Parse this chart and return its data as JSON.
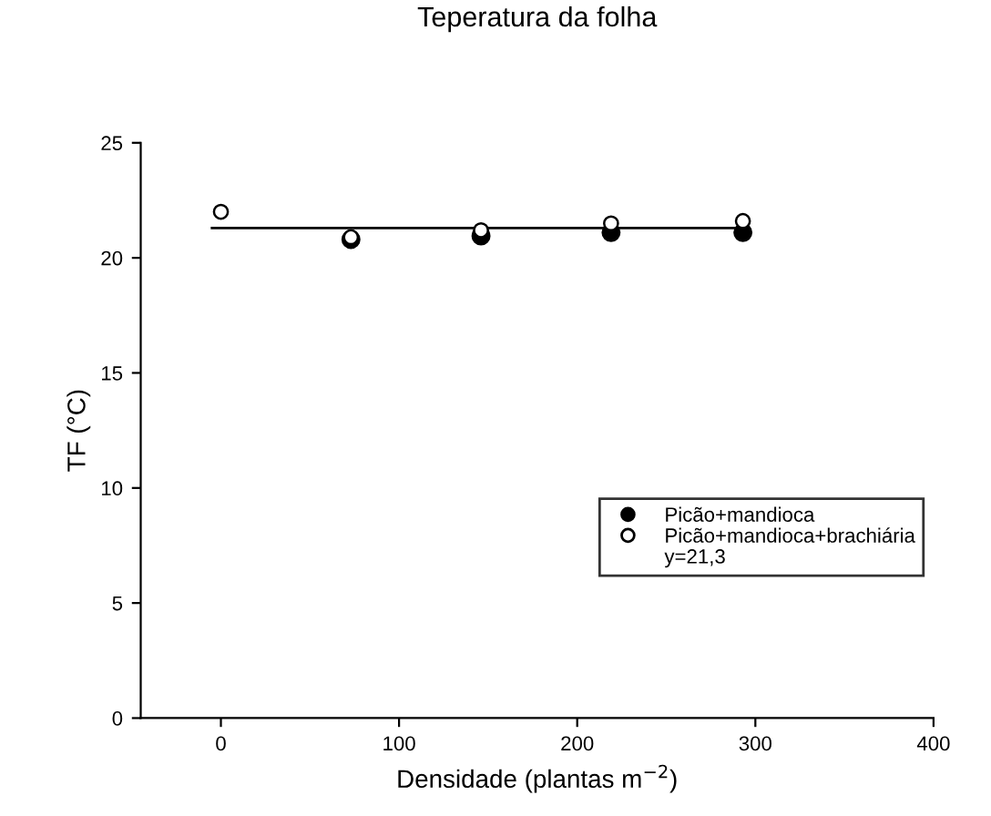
{
  "chart_data": {
    "type": "scatter",
    "title": "Teperatura da folha",
    "xlabel": "Densidade (plantas m$^{−2}$)",
    "ylabel": "TF (°C)",
    "x": [
      0,
      73,
      146,
      219,
      293
    ],
    "series": [
      {
        "name": "Picão+mandioca",
        "color": "#000000",
        "marker": "circle",
        "values": [
          null,
          20.8,
          20.95,
          21.1,
          21.1
        ]
      },
      {
        "name": "Picão+mandioca+brachiária",
        "color": "#ffffff",
        "marker": "circle",
        "values": [
          22.0,
          20.9,
          21.2,
          21.5,
          21.6
        ]
      },
      {
        "type": "line",
        "color": "#000000",
        "marker": "none",
        "x": [
          -5,
          295
        ],
        "values": [
          21.3,
          21.3
        ]
      }
    ],
    "annotations": [
      "y=21,3"
    ],
    "xlim": [
      -45,
      400
    ],
    "ylim": [
      0,
      25
    ],
    "xticks": [
      0,
      100,
      200,
      300,
      400
    ],
    "yticks": [
      0,
      5,
      10,
      15,
      20,
      25
    ],
    "grid": false,
    "legend": "bottom right"
  }
}
